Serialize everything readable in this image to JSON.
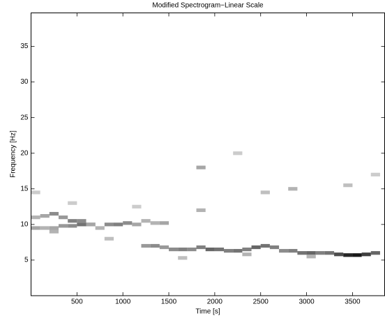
{
  "chart_data": {
    "type": "heatmap",
    "title": "Modified Spectrogram−Linear Scale",
    "xlabel": "Time [s]",
    "ylabel": "Frequency [Hz]",
    "colormap": "gray_r",
    "xlim": [
      0,
      3850
    ],
    "ylim": [
      0,
      39.7
    ],
    "xticks": [
      500,
      1000,
      1500,
      2000,
      2500,
      3000,
      3500
    ],
    "yticks": [
      5,
      10,
      15,
      20,
      25,
      30,
      35
    ],
    "t": [
      50,
      150,
      250,
      350,
      450,
      550,
      650,
      750,
      850,
      950,
      1050,
      1150,
      1250,
      1350,
      1450,
      1550,
      1650,
      1750,
      1850,
      1950,
      2050,
      2150,
      2250,
      2350,
      2450,
      2550,
      2650,
      2750,
      2850,
      2950,
      3050,
      3150,
      3250,
      3350,
      3450,
      3550,
      3650,
      3750,
      50,
      150,
      250,
      350,
      450,
      550,
      650,
      1250,
      1350,
      1450,
      250,
      850,
      1650,
      2350,
      3050,
      1850,
      1850,
      2250,
      2850,
      3450,
      2550,
      450,
      50,
      1150,
      3750
    ],
    "f": [
      9.5,
      9.5,
      9.5,
      9.8,
      9.8,
      10,
      10,
      9.5,
      10,
      10,
      10.2,
      10,
      7,
      7,
      6.8,
      6.5,
      6.5,
      6.5,
      6.8,
      6.5,
      6.5,
      6.3,
      6.3,
      6.5,
      6.8,
      7,
      6.8,
      6.3,
      6.3,
      6,
      6,
      6,
      6,
      5.8,
      5.7,
      5.7,
      5.8,
      6,
      11,
      11.2,
      11.5,
      11,
      10.5,
      10.5,
      10,
      10.5,
      10.2,
      10.2,
      9,
      8,
      5.3,
      5.8,
      5.5,
      12,
      18,
      20,
      15,
      15.5,
      14.5,
      13,
      14.5,
      12.5,
      17
    ],
    "intensity": [
      0.35,
      0.3,
      0.35,
      0.4,
      0.45,
      0.55,
      0.4,
      0.3,
      0.45,
      0.5,
      0.45,
      0.35,
      0.4,
      0.45,
      0.4,
      0.45,
      0.5,
      0.45,
      0.5,
      0.6,
      0.55,
      0.5,
      0.55,
      0.5,
      0.6,
      0.55,
      0.5,
      0.45,
      0.5,
      0.55,
      0.6,
      0.5,
      0.55,
      0.7,
      0.85,
      0.9,
      0.75,
      0.6,
      0.3,
      0.35,
      0.45,
      0.4,
      0.5,
      0.45,
      0.35,
      0.3,
      0.3,
      0.35,
      0.3,
      0.25,
      0.25,
      0.3,
      0.3,
      0.3,
      0.35,
      0.2,
      0.3,
      0.25,
      0.25,
      0.2,
      0.2,
      0.2,
      0.2
    ]
  }
}
